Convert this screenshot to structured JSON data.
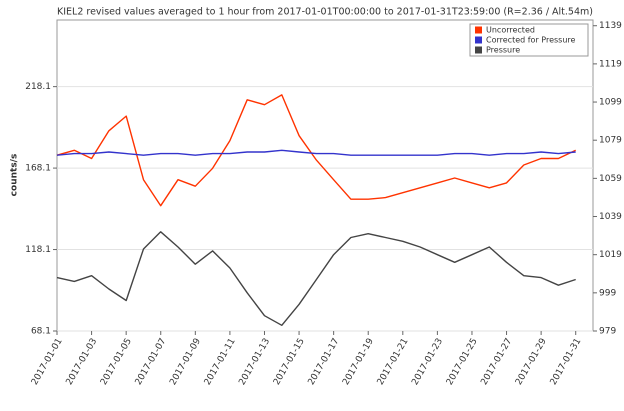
{
  "chart_data": {
    "type": "line",
    "title": "KIEL2 revised values averaged to 1 hour from 2017-01-01T00:00:00 to 2017-01-31T23:59:00 (R=2.36 / Alt.54m)",
    "y_label": "counts/s",
    "x": [
      "2017-01-01",
      "2017-01-02",
      "2017-01-03",
      "2017-01-04",
      "2017-01-05",
      "2017-01-06",
      "2017-01-07",
      "2017-01-08",
      "2017-01-09",
      "2017-01-10",
      "2017-01-11",
      "2017-01-12",
      "2017-01-13",
      "2017-01-14",
      "2017-01-15",
      "2017-01-16",
      "2017-01-17",
      "2017-01-18",
      "2017-01-19",
      "2017-01-20",
      "2017-01-21",
      "2017-01-22",
      "2017-01-23",
      "2017-01-24",
      "2017-01-25",
      "2017-01-26",
      "2017-01-27",
      "2017-01-28",
      "2017-01-29",
      "2017-01-30",
      "2017-01-31"
    ],
    "xlim": [
      "2017-01-01",
      "2017-02-01"
    ],
    "xticks": [
      "2017-01-01",
      "2017-01-03",
      "2017-01-05",
      "2017-01-07",
      "2017-01-09",
      "2017-01-11",
      "2017-01-13",
      "2017-01-15",
      "2017-01-17",
      "2017-01-19",
      "2017-01-21",
      "2017-01-23",
      "2017-01-25",
      "2017-01-27",
      "2017-01-29",
      "2017-01-31"
    ],
    "ylim": [
      68.1,
      259
    ],
    "yticks": [
      68.1,
      118.1,
      168.1,
      218.1
    ],
    "y2lim": [
      979,
      1142
    ],
    "y2ticks": [
      979,
      999,
      1019,
      1039,
      1059,
      1079,
      1099,
      1119,
      1139
    ],
    "grid": true,
    "legend": "top-right",
    "series": [
      {
        "name": "Uncorrected",
        "color": "#ff3300",
        "values": [
          176,
          179,
          174,
          191,
          200,
          161,
          145,
          161,
          157,
          168,
          185,
          210,
          207,
          213,
          188,
          173,
          161,
          149,
          149,
          150,
          153,
          156,
          159,
          162,
          159,
          156,
          159,
          170,
          174,
          174,
          179
        ]
      },
      {
        "name": "Corrected for Pressure",
        "color": "#3333cc",
        "values": [
          176,
          177,
          177,
          178,
          177,
          176,
          177,
          177,
          176,
          177,
          177,
          178,
          178,
          179,
          178,
          177,
          177,
          176,
          176,
          176,
          176,
          176,
          176,
          177,
          177,
          176,
          177,
          177,
          178,
          177,
          178
        ]
      },
      {
        "name": "Pressure",
        "color": "#444444",
        "axis": "y2",
        "values": [
          1007,
          1005,
          1008,
          1001,
          995,
          1022,
          1031,
          1023,
          1014,
          1021,
          1012,
          999,
          987,
          982,
          993,
          1006,
          1019,
          1028,
          1030,
          1028,
          1026,
          1023,
          1019,
          1015,
          1019,
          1023,
          1015,
          1008,
          1007,
          1003,
          1006
        ]
      }
    ]
  }
}
